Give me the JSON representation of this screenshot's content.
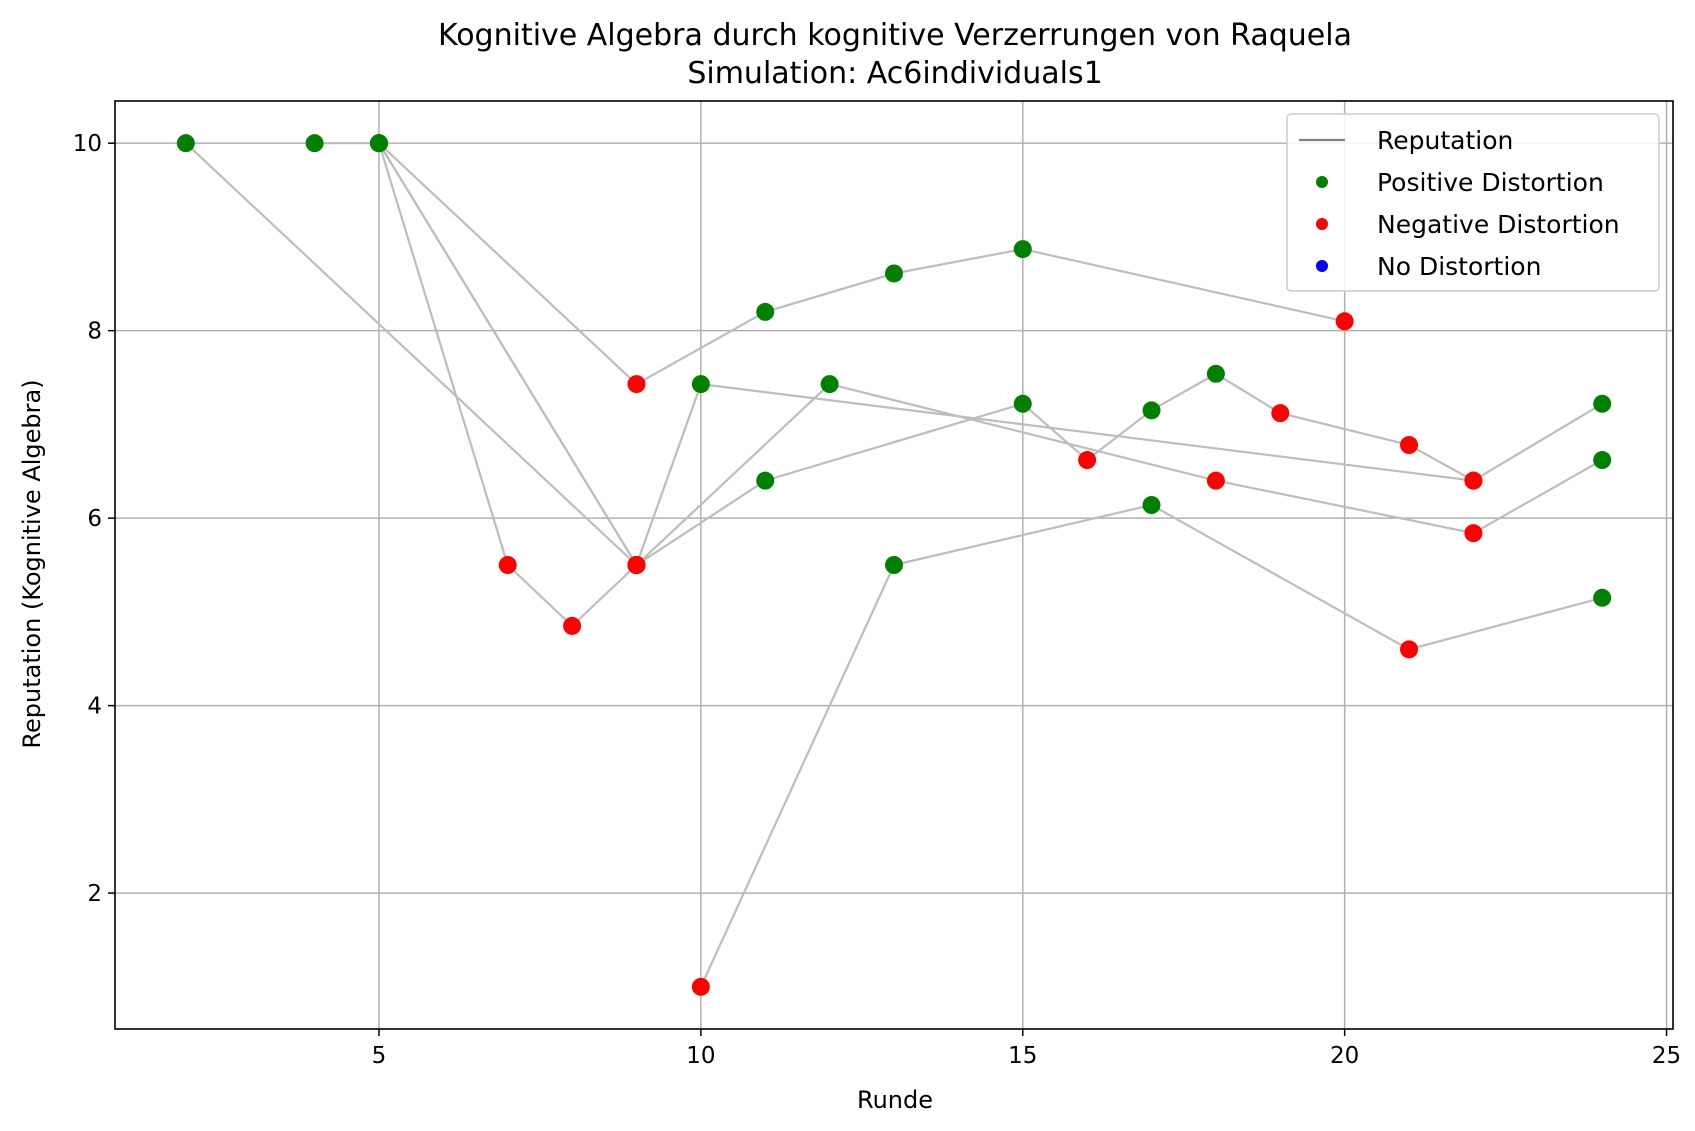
{
  "chart_data": {
    "type": "scatter",
    "title": "Kognitive Algebra durch kognitive Verzerrungen von Raquela",
    "subtitle": "Simulation: Ac6individuals1",
    "xlabel": "Runde",
    "ylabel": "Reputation (Kognitive Algebra)",
    "xlim": [
      0.9,
      25.1
    ],
    "ylim": [
      0.55,
      10.45
    ],
    "xticks": [
      5,
      10,
      15,
      20,
      25
    ],
    "yticks": [
      2,
      4,
      6,
      8,
      10
    ],
    "grid": true,
    "legend_position": "top-right",
    "legend": [
      {
        "label": "Reputation",
        "kind": "line",
        "color": "#808080"
      },
      {
        "label": "Positive Distortion",
        "kind": "marker",
        "color": "#008000"
      },
      {
        "label": "Negative Distortion",
        "kind": "marker",
        "color": "#ff0000"
      },
      {
        "label": "No Distortion",
        "kind": "marker",
        "color": "#0000ff"
      }
    ],
    "colors": {
      "positive": "#008000",
      "negative": "#ff0000",
      "none": "#0000ff",
      "line": "#bdbdbd"
    },
    "series": [
      {
        "points": [
          [
            4,
            10.0,
            "positive"
          ],
          [
            5,
            10.0,
            "positive"
          ]
        ]
      },
      {
        "points": [
          [
            2,
            10.0,
            "positive"
          ],
          [
            9,
            5.5,
            "negative"
          ],
          [
            11,
            6.4,
            "positive"
          ],
          [
            15,
            7.22,
            "positive"
          ],
          [
            16,
            6.62,
            "negative"
          ],
          [
            17,
            7.15,
            "positive"
          ],
          [
            18,
            7.54,
            "positive"
          ],
          [
            19,
            7.12,
            "negative"
          ],
          [
            21,
            6.78,
            "negative"
          ],
          [
            22,
            6.4,
            "negative"
          ],
          [
            24,
            7.22,
            "positive"
          ]
        ]
      },
      {
        "points": [
          [
            5,
            10.0,
            "positive"
          ],
          [
            9,
            7.43,
            "negative"
          ],
          [
            11,
            8.2,
            "positive"
          ],
          [
            13,
            8.61,
            "positive"
          ],
          [
            15,
            8.87,
            "positive"
          ],
          [
            20,
            8.1,
            "negative"
          ]
        ]
      },
      {
        "points": [
          [
            5,
            10.0,
            "positive"
          ],
          [
            9,
            5.5,
            "negative"
          ],
          [
            10,
            7.43,
            "positive"
          ],
          [
            22,
            6.4,
            "negative"
          ]
        ]
      },
      {
        "points": [
          [
            5,
            10.0,
            "positive"
          ],
          [
            9,
            5.5,
            "negative"
          ],
          [
            12,
            7.43,
            "positive"
          ],
          [
            18,
            6.4,
            "negative"
          ],
          [
            22,
            5.84,
            "negative"
          ],
          [
            24,
            6.62,
            "positive"
          ]
        ]
      },
      {
        "points": [
          [
            5,
            10.0,
            "positive"
          ],
          [
            7,
            5.5,
            "negative"
          ],
          [
            8,
            4.85,
            "negative"
          ],
          [
            9,
            5.5,
            "negative"
          ]
        ]
      },
      {
        "points": [
          [
            10,
            1.0,
            "negative"
          ],
          [
            13,
            5.5,
            "positive"
          ],
          [
            17,
            6.14,
            "positive"
          ],
          [
            21,
            4.6,
            "negative"
          ],
          [
            24,
            5.15,
            "positive"
          ]
        ]
      }
    ]
  }
}
